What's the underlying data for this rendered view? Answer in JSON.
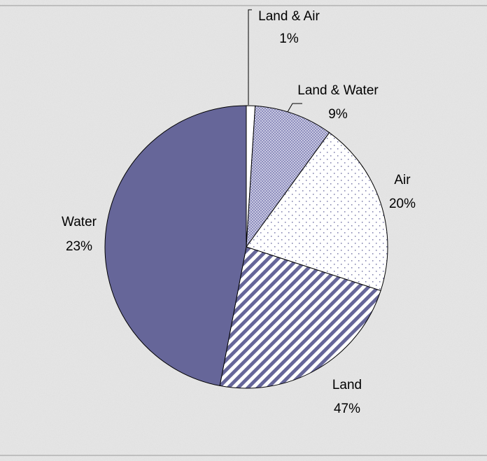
{
  "chart_data": {
    "type": "pie",
    "categories": [
      "Land & Air",
      "Land & Water",
      "Air",
      "Water",
      "Land"
    ],
    "values": [
      1,
      9,
      20,
      23,
      47
    ],
    "value_labels": [
      "1%",
      "9%",
      "20%",
      "23%",
      "47%"
    ],
    "colors": [
      "#ffffff",
      "#8f8fbf",
      "#7a7aaa",
      "#666699",
      "#666699"
    ]
  }
}
